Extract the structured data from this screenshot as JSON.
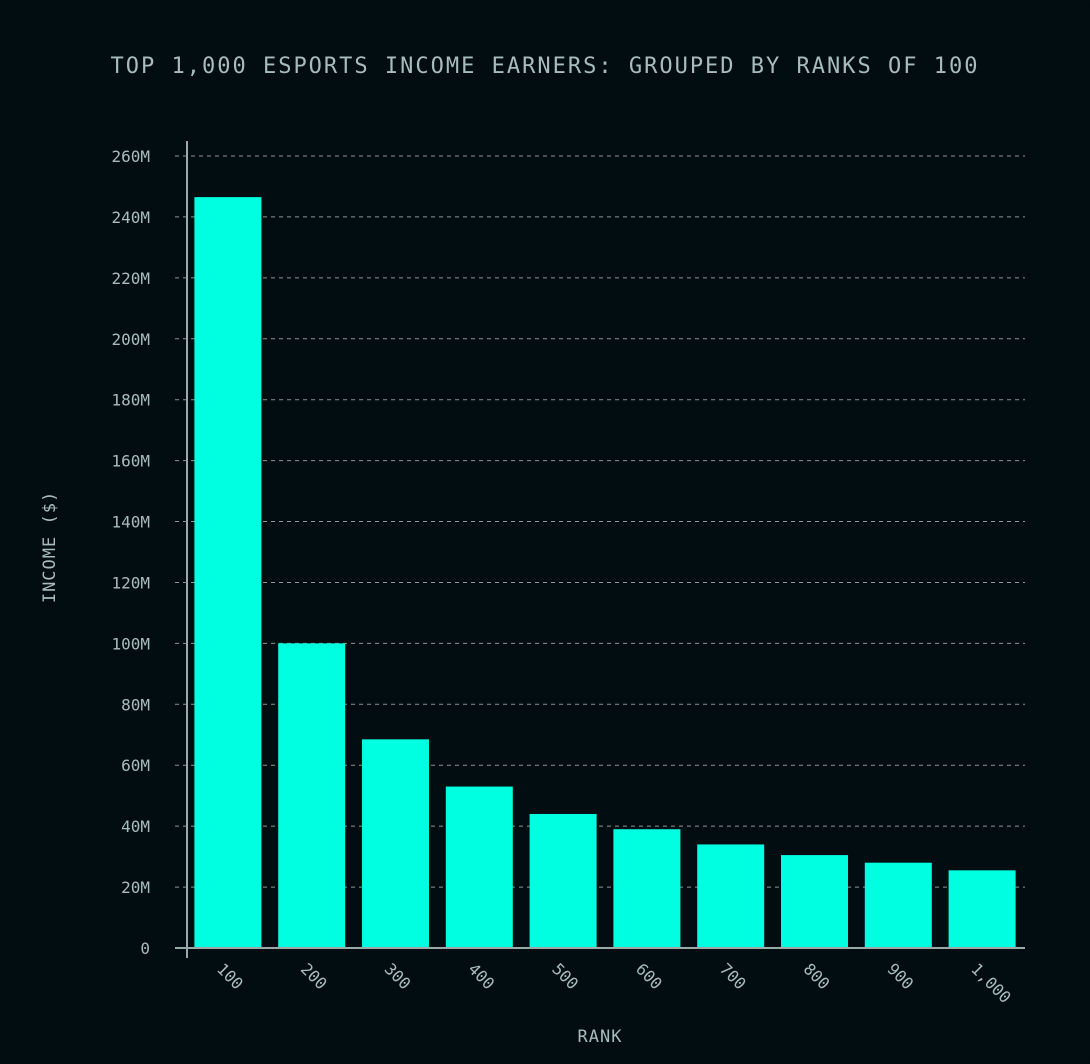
{
  "chart_data": {
    "type": "bar",
    "title": "TOP 1,000 ESPORTS INCOME EARNERS: GROUPED BY RANKS OF 100",
    "xlabel": "RANK",
    "ylabel": "INCOME ($)",
    "categories": [
      "100",
      "200",
      "300",
      "400",
      "500",
      "600",
      "700",
      "800",
      "900",
      "1,000"
    ],
    "values": [
      246500000,
      100000000,
      68500000,
      53000000,
      44000000,
      39000000,
      34000000,
      30500000,
      28000000,
      25500000
    ],
    "ylim": [
      0,
      260000000
    ],
    "yticks": [
      0,
      20000000,
      40000000,
      60000000,
      80000000,
      100000000,
      120000000,
      140000000,
      160000000,
      180000000,
      200000000,
      220000000,
      240000000,
      260000000
    ],
    "ytick_labels": [
      "0",
      "20M",
      "40M",
      "60M",
      "80M",
      "100M",
      "120M",
      "140M",
      "160M",
      "180M",
      "200M",
      "220M",
      "240M",
      "260M"
    ],
    "grid": true,
    "legend": "none"
  },
  "colors": {
    "background": "#010d11",
    "bar": "#00ffe0",
    "text": "#a9bcbc",
    "axis": "#9aaaa8",
    "grid": "#8a9896"
  }
}
